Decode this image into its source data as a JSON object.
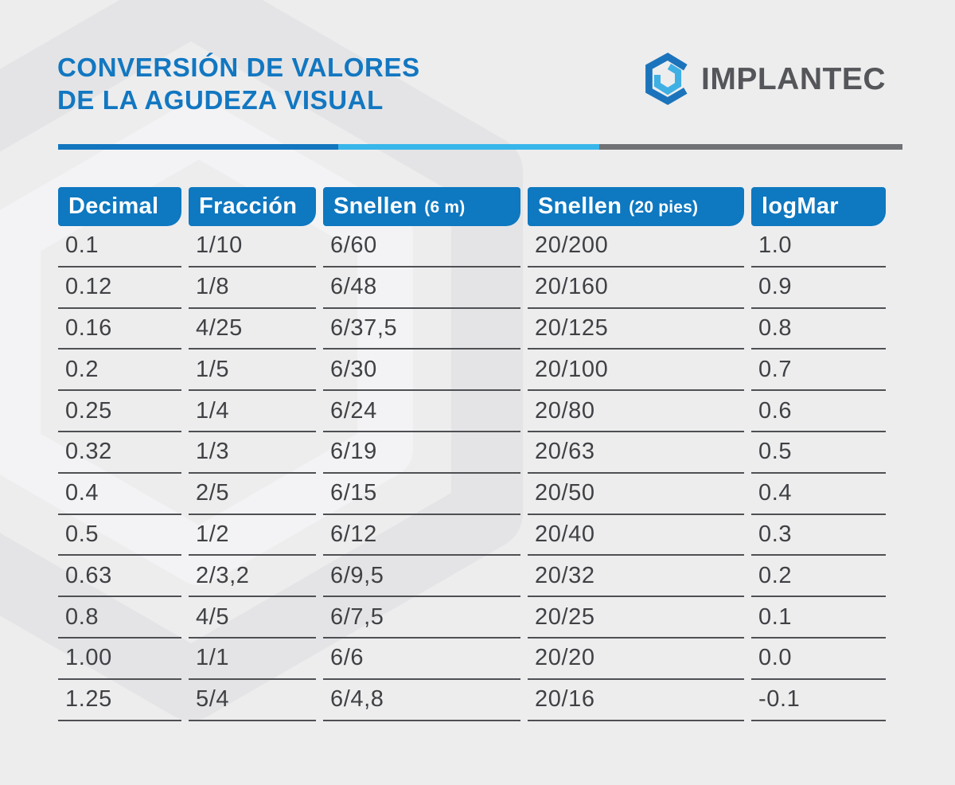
{
  "header": {
    "title_line1": "CONVERSIÓN DE VALORES",
    "title_line2": "DE LA AGUDEZA VISUAL",
    "brand": {
      "name_regular": "IMPLAN",
      "name_bold": "TEC",
      "icon": "implantec-hexagon-logo"
    }
  },
  "colors": {
    "background": "#ededee",
    "title_blue": "#1277c1",
    "header_blue": "#0e78c0",
    "divider_dark_blue": "#1276bf",
    "divider_light_blue": "#38b6ea",
    "divider_gray": "#717275",
    "text_dark": "#3f4144",
    "underline_gray": "#4e5053",
    "brand_text_gray": "#55565a",
    "logo_dark_blue": "#1b74bb",
    "logo_light_blue": "#3fb0e4",
    "watermark_dark": "#e4e4e6",
    "watermark_light": "#f3f3f5"
  },
  "table": {
    "columns": [
      {
        "label": "Decimal",
        "sub": ""
      },
      {
        "label": "Fracción",
        "sub": ""
      },
      {
        "label": "Snellen",
        "sub": "(6 m)"
      },
      {
        "label": "Snellen",
        "sub": "(20 pies)"
      },
      {
        "label": "logMar",
        "sub": ""
      }
    ],
    "rows": [
      [
        "0.1",
        "1/10",
        "6/60",
        "20/200",
        "1.0"
      ],
      [
        "0.12",
        "1/8",
        "6/48",
        "20/160",
        "0.9"
      ],
      [
        "0.16",
        "4/25",
        "6/37,5",
        "20/125",
        "0.8"
      ],
      [
        "0.2",
        "1/5",
        "6/30",
        "20/100",
        "0.7"
      ],
      [
        "0.25",
        "1/4",
        "6/24",
        "20/80",
        "0.6"
      ],
      [
        "0.32",
        "1/3",
        "6/19",
        "20/63",
        "0.5"
      ],
      [
        "0.4",
        "2/5",
        "6/15",
        "20/50",
        "0.4"
      ],
      [
        "0.5",
        "1/2",
        "6/12",
        "20/40",
        "0.3"
      ],
      [
        "0.63",
        "2/3,2",
        "6/9,5",
        "20/32",
        "0.2"
      ],
      [
        "0.8",
        "4/5",
        "6/7,5",
        "20/25",
        "0.1"
      ],
      [
        "1.00",
        "1/1",
        "6/6",
        "20/20",
        "0.0"
      ],
      [
        "1.25",
        "5/4",
        "6/4,8",
        "20/16",
        "-0.1"
      ]
    ]
  }
}
